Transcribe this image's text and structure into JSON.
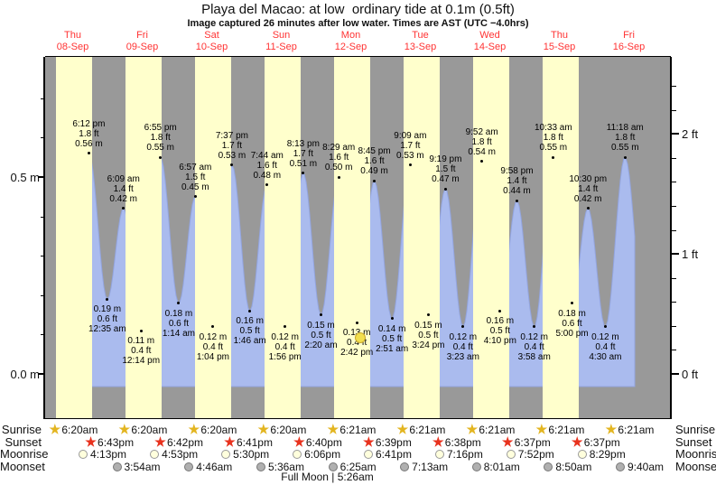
{
  "title": "Playa del Macao: at low  ordinary tide at 0.1m (0.5ft)",
  "subtitle": "Image captured 26 minutes after low water. Times are AST (UTC −4.0hrs)",
  "colors": {
    "day_band": "#ffffcc",
    "night_band": "#999999",
    "tide_area": "#aabbee",
    "tide_area_edge": "#93a5e0",
    "day_label": "#ff3232",
    "current_dot": "#f2df4e",
    "sunrise_star": "#e3b520",
    "sunset_star": "#e8321e",
    "moonrise_circle": "#ffffdd",
    "moonset_circle": "#b0b0b0"
  },
  "days": [
    {
      "weekday": "Thu",
      "date": "08-Sep"
    },
    {
      "weekday": "Fri",
      "date": "09-Sep"
    },
    {
      "weekday": "Sat",
      "date": "10-Sep"
    },
    {
      "weekday": "Sun",
      "date": "11-Sep"
    },
    {
      "weekday": "Mon",
      "date": "12-Sep"
    },
    {
      "weekday": "Tue",
      "date": "13-Sep"
    },
    {
      "weekday": "Wed",
      "date": "14-Sep"
    },
    {
      "weekday": "Thu",
      "date": "15-Sep"
    },
    {
      "weekday": "Fri",
      "date": "16-Sep"
    }
  ],
  "axes": {
    "left": {
      "unit": "m",
      "labels": [
        {
          "text": "0.5 m",
          "value": 0.5
        },
        {
          "text": "0.0 m",
          "value": 0.0
        }
      ]
    },
    "right": {
      "unit": "ft",
      "labels": [
        {
          "text": "2 ft",
          "value": 2
        },
        {
          "text": "1 ft",
          "value": 1
        },
        {
          "text": "0 ft",
          "value": 0
        }
      ]
    }
  },
  "chart_data": {
    "type": "area",
    "series_name": "tide height",
    "x_axis": "time, Thu 08-Sep through Fri 16-Sep",
    "ylabel_left": "meters",
    "ylabel_right": "feet",
    "y_left_visible_range_m": [
      -0.1,
      0.79
    ],
    "extremes": [
      {
        "day": 0,
        "kind": "high",
        "time": "6:12 pm",
        "ft": "1.8 ft",
        "m": "0.56 m"
      },
      {
        "day": 1,
        "kind": "low",
        "time": "12:35 am",
        "ft": "0.6 ft",
        "m": "0.19 m"
      },
      {
        "day": 1,
        "kind": "high",
        "time": "6:09 am",
        "ft": "1.4 ft",
        "m": "0.42 m"
      },
      {
        "day": 1,
        "kind": "low",
        "time": "12:14 pm",
        "ft": "0.4 ft",
        "m": "0.11 m"
      },
      {
        "day": 1,
        "kind": "high",
        "time": "6:55 pm",
        "ft": "1.8 ft",
        "m": "0.55 m"
      },
      {
        "day": 2,
        "kind": "low",
        "time": "1:14 am",
        "ft": "0.6 ft",
        "m": "0.18 m"
      },
      {
        "day": 2,
        "kind": "high",
        "time": "6:57 am",
        "ft": "1.5 ft",
        "m": "0.45 m"
      },
      {
        "day": 2,
        "kind": "low",
        "time": "1:04 pm",
        "ft": "0.4 ft",
        "m": "0.12 m"
      },
      {
        "day": 2,
        "kind": "high",
        "time": "7:37 pm",
        "ft": "1.7 ft",
        "m": "0.53 m"
      },
      {
        "day": 3,
        "kind": "low",
        "time": "1:46 am",
        "ft": "0.5 ft",
        "m": "0.16 m"
      },
      {
        "day": 3,
        "kind": "high",
        "time": "7:44 am",
        "ft": "1.6 ft",
        "m": "0.48 m"
      },
      {
        "day": 3,
        "kind": "low",
        "time": "1:56 pm",
        "ft": "0.4 ft",
        "m": "0.12 m"
      },
      {
        "day": 3,
        "kind": "high",
        "time": "8:13 pm",
        "ft": "1.7 ft",
        "m": "0.51 m"
      },
      {
        "day": 4,
        "kind": "low",
        "time": "2:20 am",
        "ft": "0.5 ft",
        "m": "0.15 m"
      },
      {
        "day": 4,
        "kind": "high",
        "time": "8:29 am",
        "ft": "1.6 ft",
        "m": "0.50 m"
      },
      {
        "day": 4,
        "kind": "low",
        "time": "2:42 pm",
        "ft": "0.4 ft",
        "m": "0.13 m"
      },
      {
        "day": 4,
        "kind": "high",
        "time": "8:45 pm",
        "ft": "1.6 ft",
        "m": "0.49 m"
      },
      {
        "day": 5,
        "kind": "low",
        "time": "2:51 am",
        "ft": "0.5 ft",
        "m": "0.14 m"
      },
      {
        "day": 5,
        "kind": "high",
        "time": "9:09 am",
        "ft": "1.7 ft",
        "m": "0.53 m"
      },
      {
        "day": 5,
        "kind": "low",
        "time": "3:24 pm",
        "ft": "0.5 ft",
        "m": "0.15 m"
      },
      {
        "day": 5,
        "kind": "high",
        "time": "9:19 pm",
        "ft": "1.5 ft",
        "m": "0.47 m"
      },
      {
        "day": 6,
        "kind": "low",
        "time": "3:23 am",
        "ft": "0.4 ft",
        "m": "0.12 m"
      },
      {
        "day": 6,
        "kind": "high",
        "time": "9:52 am",
        "ft": "1.8 ft",
        "m": "0.54 m"
      },
      {
        "day": 6,
        "kind": "low",
        "time": "4:10 pm",
        "ft": "0.5 ft",
        "m": "0.16 m"
      },
      {
        "day": 6,
        "kind": "high",
        "time": "9:58 pm",
        "ft": "1.4 ft",
        "m": "0.44 m"
      },
      {
        "day": 7,
        "kind": "low",
        "time": "3:58 am",
        "ft": "0.4 ft",
        "m": "0.12 m"
      },
      {
        "day": 7,
        "kind": "high",
        "time": "10:33 am",
        "ft": "1.8 ft",
        "m": "0.55 m"
      },
      {
        "day": 7,
        "kind": "low",
        "time": "5:00 pm",
        "ft": "0.6 ft",
        "m": "0.18 m"
      },
      {
        "day": 7,
        "kind": "high",
        "time": "10:30 pm",
        "ft": "1.4 ft",
        "m": "0.42 m"
      },
      {
        "day": 8,
        "kind": "low",
        "time": "4:30 am",
        "ft": "0.4 ft",
        "m": "0.12 m"
      },
      {
        "day": 8,
        "kind": "high",
        "time": "11:18 am",
        "ft": "1.8 ft",
        "m": "0.55 m"
      }
    ],
    "current_position": {
      "day": 4,
      "near_low_time": "2:42 pm",
      "value_m": 0.13
    }
  },
  "astronomy": {
    "rows": [
      {
        "name": "Sunrise",
        "icon": "sunrise-star",
        "events": [
          {
            "day": 0,
            "time": "6:20am"
          },
          {
            "day": 1,
            "time": "6:20am"
          },
          {
            "day": 2,
            "time": "6:20am"
          },
          {
            "day": 3,
            "time": "6:20am"
          },
          {
            "day": 4,
            "time": "6:21am"
          },
          {
            "day": 5,
            "time": "6:21am"
          },
          {
            "day": 6,
            "time": "6:21am"
          },
          {
            "day": 7,
            "time": "6:21am"
          },
          {
            "day": 8,
            "time": "6:21am"
          }
        ]
      },
      {
        "name": "Sunset",
        "icon": "sunset-star",
        "events": [
          {
            "day": 0,
            "time": "6:43pm"
          },
          {
            "day": 1,
            "time": "6:42pm"
          },
          {
            "day": 2,
            "time": "6:41pm"
          },
          {
            "day": 3,
            "time": "6:40pm"
          },
          {
            "day": 4,
            "time": "6:39pm"
          },
          {
            "day": 5,
            "time": "6:38pm"
          },
          {
            "day": 6,
            "time": "6:37pm"
          },
          {
            "day": 7,
            "time": "6:37pm"
          }
        ]
      },
      {
        "name": "Moonrise",
        "icon": "moonrise-circle",
        "events": [
          {
            "day": 0,
            "time": "4:13pm"
          },
          {
            "day": 1,
            "time": "4:53pm"
          },
          {
            "day": 2,
            "time": "5:30pm"
          },
          {
            "day": 3,
            "time": "6:06pm"
          },
          {
            "day": 4,
            "time": "6:41pm"
          },
          {
            "day": 5,
            "time": "7:16pm"
          },
          {
            "day": 6,
            "time": "7:52pm"
          },
          {
            "day": 7,
            "time": "8:29pm"
          }
        ]
      },
      {
        "name": "Moonset",
        "icon": "moonset-circle",
        "events": [
          {
            "day": 1,
            "time": "3:54am"
          },
          {
            "day": 2,
            "time": "4:46am"
          },
          {
            "day": 3,
            "time": "5:36am"
          },
          {
            "day": 4,
            "time": "6:25am"
          },
          {
            "day": 5,
            "time": "7:13am"
          },
          {
            "day": 6,
            "time": "8:01am"
          },
          {
            "day": 7,
            "time": "8:50am"
          },
          {
            "day": 8,
            "time": "9:40am"
          }
        ]
      }
    ],
    "footer": "Full Moon | 5:26am"
  }
}
